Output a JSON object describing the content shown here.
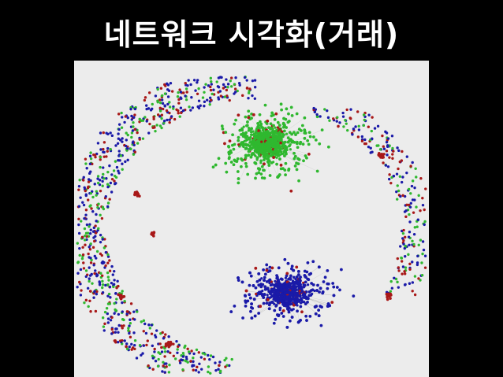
{
  "slide": {
    "title": "네트워크 시각화(거래)"
  },
  "network_image": {
    "colors": {
      "background": "#ececec",
      "green_nodes": "#2fb82f",
      "blue_nodes": "#1a1aa8",
      "red_nodes": "#a81818",
      "edges": "#9a9a9a"
    }
  }
}
